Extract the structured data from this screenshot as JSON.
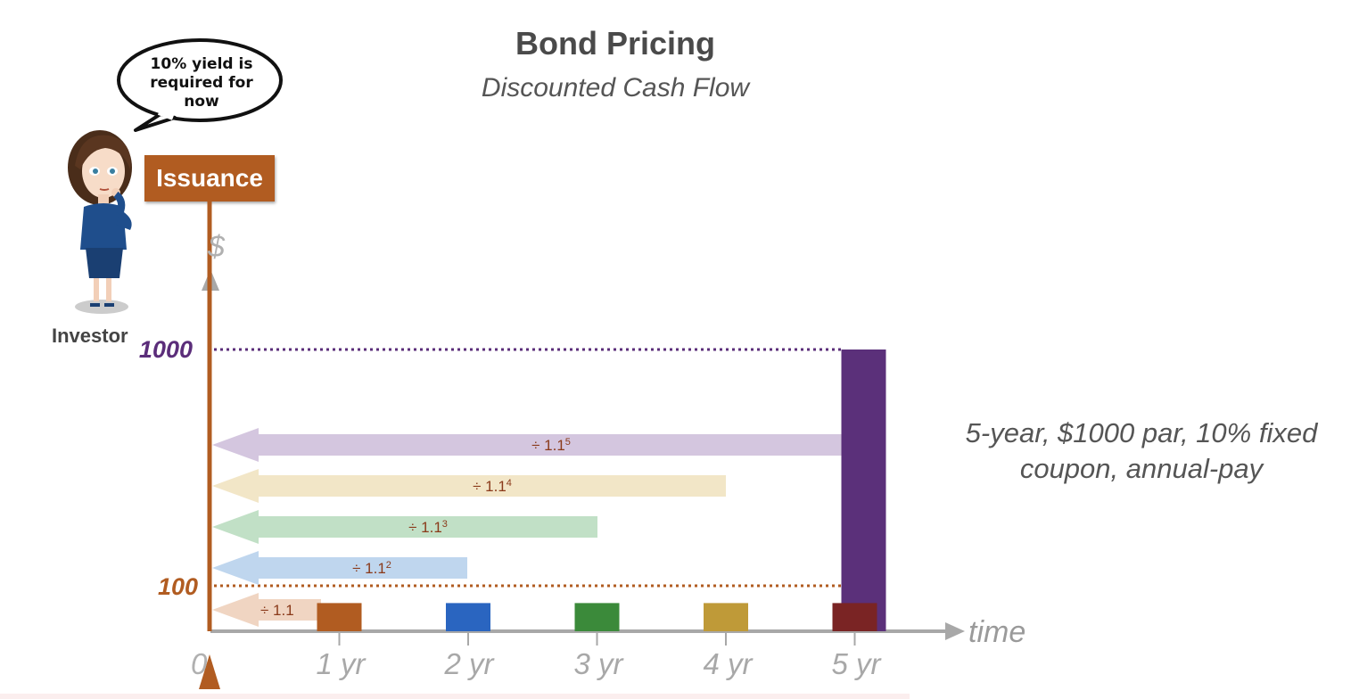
{
  "title": "Bond Pricing",
  "subtitle": "Discounted Cash Flow",
  "speech_bubble": "10% yield is required for now",
  "investor_label": "Investor",
  "issuance_label": "Issuance",
  "axis": {
    "y_symbol": "$",
    "x_label": "time",
    "origin_label": "0",
    "ticks": [
      "1 yr",
      "2 yr",
      "3 yr",
      "4 yr",
      "5 yr"
    ]
  },
  "levels": {
    "par_label": "1000",
    "coupon_label": "100",
    "par_color": "#5b2d7a",
    "coupon_color": "#b15c21"
  },
  "description": "5-year, $1000 par, 10% fixed coupon, annual-pay",
  "chart_data": {
    "type": "bar",
    "categories": [
      "1 yr",
      "2 yr",
      "3 yr",
      "4 yr",
      "5 yr"
    ],
    "coupon_values": [
      100,
      100,
      100,
      100,
      100
    ],
    "par_value": 1000,
    "coupon_colors": [
      "#b15c21",
      "#2a65c0",
      "#3b8a3a",
      "#bf9a38",
      "#7a2424"
    ],
    "par_color": "#5b307a",
    "discount_arrows": [
      {
        "year": 1,
        "base": "÷ 1.1",
        "exp": "",
        "color": "#f0d5c2"
      },
      {
        "year": 2,
        "base": "÷ 1.1",
        "exp": "2",
        "color": "#bfd6ee"
      },
      {
        "year": 3,
        "base": "÷ 1.1",
        "exp": "3",
        "color": "#c1e0c6"
      },
      {
        "year": 4,
        "base": "÷ 1.1",
        "exp": "4",
        "color": "#f2e6c7"
      },
      {
        "year": 5,
        "base": "÷ 1.1",
        "exp": "5",
        "color": "#d4c6df"
      }
    ]
  }
}
